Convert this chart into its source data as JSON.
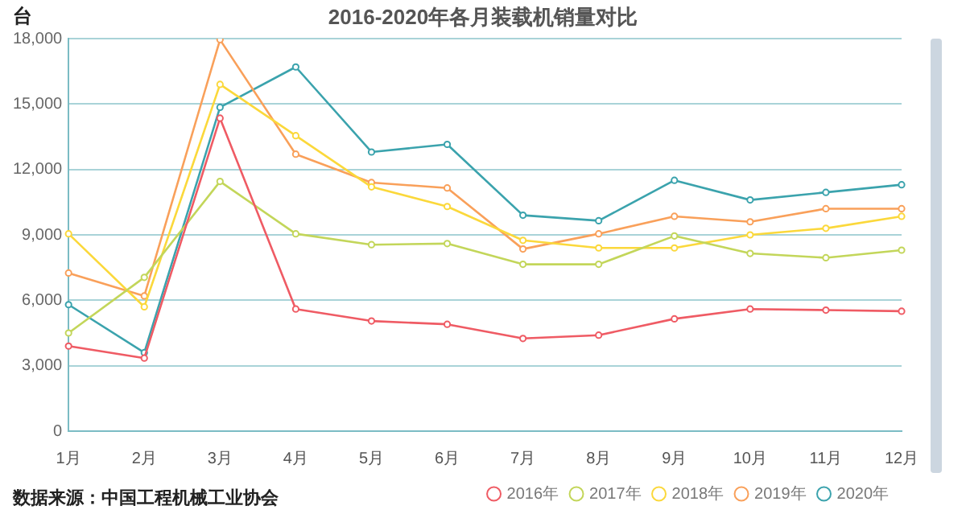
{
  "chart_data": {
    "type": "line",
    "title": "2016-2020年各月装载机销量对比",
    "ylabel": "台",
    "annotations": [
      "数据来源：中国工程机械工业协会"
    ],
    "categories": [
      "1月",
      "2月",
      "3月",
      "4月",
      "5月",
      "6月",
      "7月",
      "8月",
      "9月",
      "10月",
      "11月",
      "12月"
    ],
    "series": [
      {
        "name": "2016年",
        "color": "#ef5b64",
        "values": [
          3900,
          3350,
          14350,
          5600,
          5050,
          4900,
          4250,
          4400,
          5150,
          5600,
          5550,
          5500
        ]
      },
      {
        "name": "2017年",
        "color": "#c3d65a",
        "values": [
          4500,
          7050,
          11450,
          9050,
          8550,
          8600,
          7650,
          7650,
          8950,
          8150,
          7950,
          8300
        ]
      },
      {
        "name": "2018年",
        "color": "#fbd83b",
        "values": [
          9050,
          5700,
          15900,
          13550,
          11200,
          10300,
          8750,
          8400,
          8400,
          9000,
          9300,
          9850
        ]
      },
      {
        "name": "2019年",
        "color": "#f9a05a",
        "values": [
          7250,
          6200,
          17950,
          12700,
          11400,
          11150,
          8350,
          9050,
          9850,
          9600,
          10200,
          10200
        ]
      },
      {
        "name": "2020年",
        "color": "#3ba3ad",
        "values": [
          5800,
          3600,
          14850,
          16700,
          12800,
          13150,
          9900,
          9650,
          11500,
          10600,
          10950,
          11300
        ]
      }
    ],
    "ylim": [
      0,
      18000
    ],
    "yticks": [
      0,
      {
        "value": 3000,
        "label": "3,000"
      },
      {
        "value": 6000,
        "label": "6,000"
      },
      {
        "value": 9000,
        "label": "9,000"
      },
      {
        "value": 12000,
        "label": "12,000"
      },
      {
        "value": 15000,
        "label": "15,000"
      },
      {
        "value": 18000,
        "label": "18,000"
      }
    ],
    "grid": "y",
    "legend": "bottom",
    "marker": "circle",
    "line_style": "solid"
  }
}
